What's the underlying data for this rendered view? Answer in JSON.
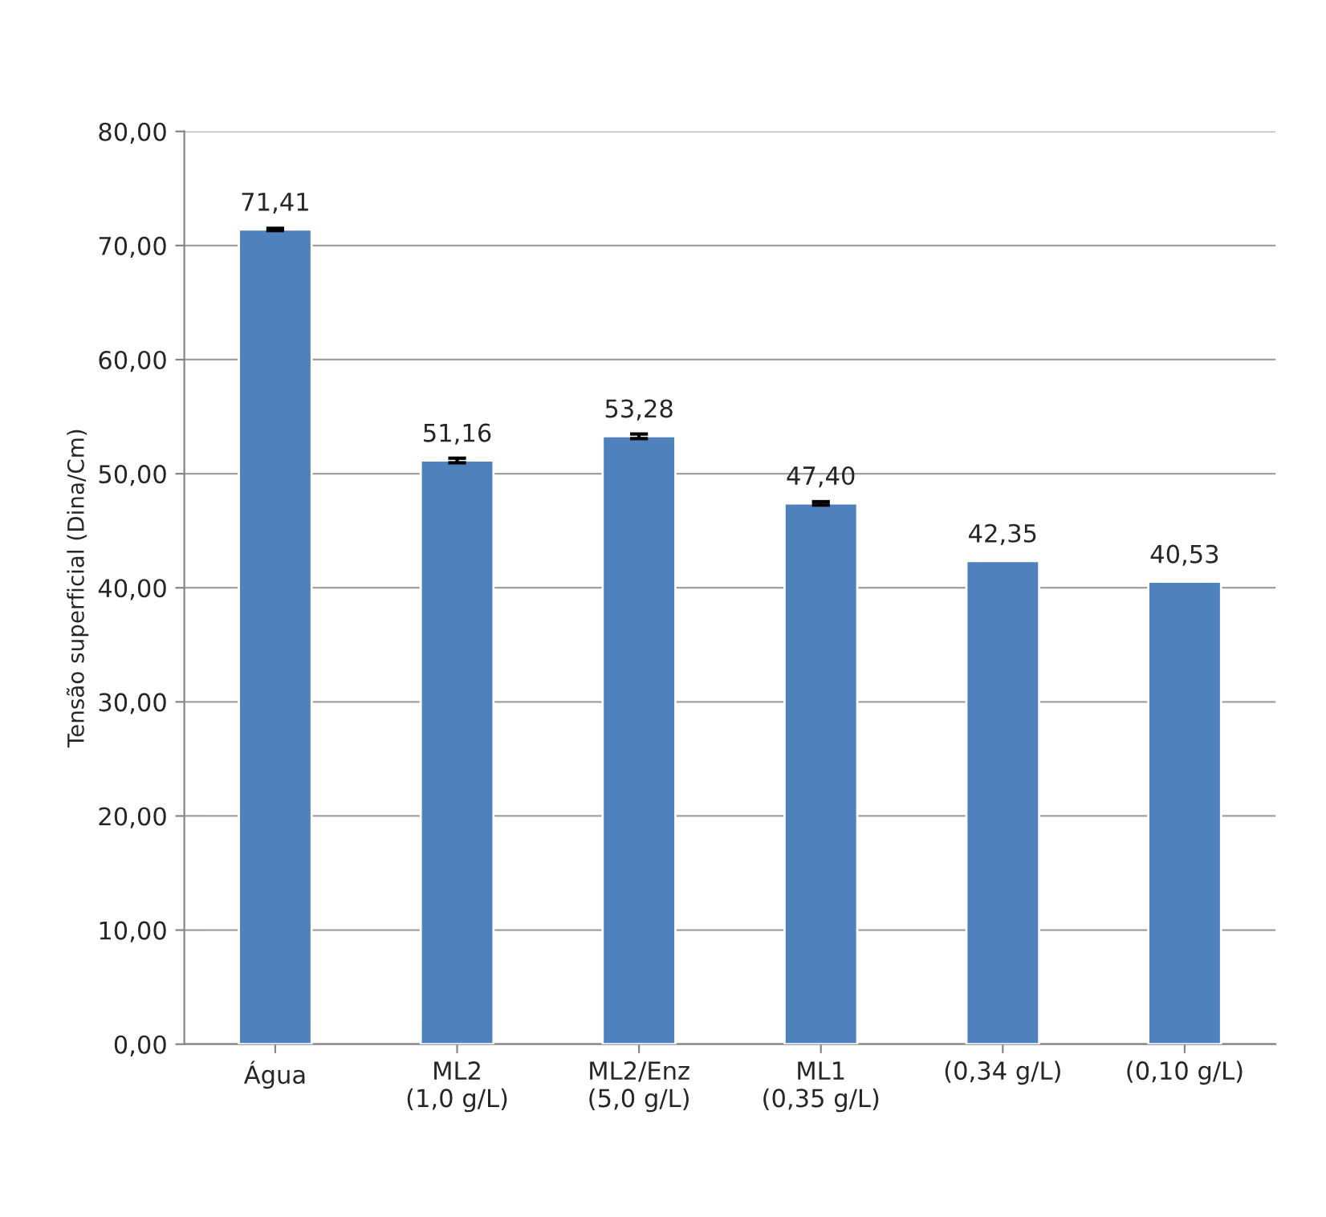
{
  "chart_data": {
    "type": "bar",
    "ylabel": "Tensão superficial (Dina/Cm)",
    "categories": [
      "Água",
      "ML2\n(1,0 g/L)",
      "ML2/Enz\n(5,0 g/L)",
      "ML1\n(0,35 g/L)",
      "(0,34 g/L)",
      "(0,10 g/L)"
    ],
    "values": [
      71.41,
      51.16,
      53.28,
      47.4,
      42.35,
      40.53
    ],
    "value_labels": [
      "71,41",
      "51,16",
      "53,28",
      "47,40",
      "42,35",
      "40,53"
    ],
    "errors": [
      0.1,
      0.2,
      0.2,
      0.15,
      null,
      null
    ],
    "color": "#4f81bd",
    "ylim": [
      0,
      80
    ],
    "yticks": [
      {
        "value": 0,
        "label": "0,00"
      },
      {
        "value": 10,
        "label": "10,00"
      },
      {
        "value": 20,
        "label": "20,00"
      },
      {
        "value": 30,
        "label": "30,00"
      },
      {
        "value": 40,
        "label": "40,00"
      },
      {
        "value": 50,
        "label": "50,00"
      },
      {
        "value": 60,
        "label": "60,00"
      },
      {
        "value": 70,
        "label": "70,00"
      },
      {
        "value": 80,
        "label": "80,00"
      }
    ],
    "grid": "y"
  }
}
